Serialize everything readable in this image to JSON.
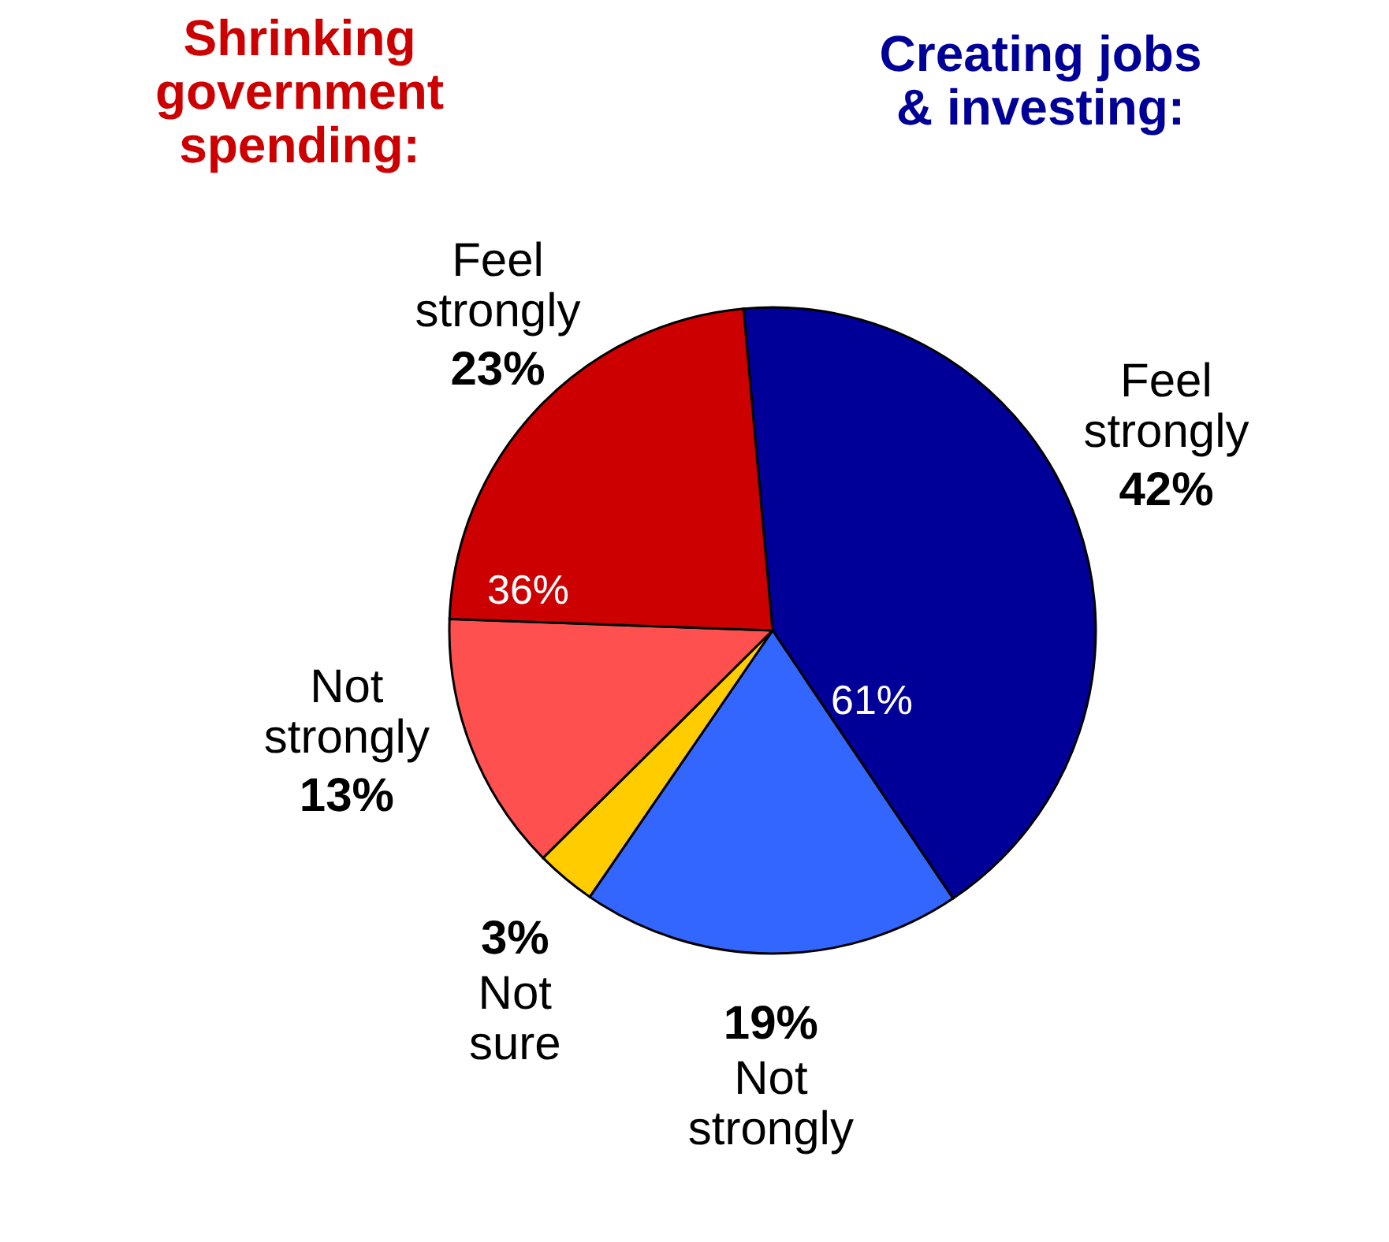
{
  "chart_data": {
    "type": "pie",
    "categories": [
      "Feel strongly",
      "Not strongly",
      "Not sure",
      "Not strongly",
      "Feel strongly"
    ],
    "values": [
      42,
      19,
      3,
      13,
      23
    ],
    "value_labels": [
      "42%",
      "19%",
      "3%",
      "13%",
      "23%"
    ],
    "colors": [
      "#000099",
      "#3366ff",
      "#ffcc00",
      "#ff5050",
      "#cc0000"
    ],
    "annotations": [
      "Shrinking government spending:",
      "Creating jobs & investing:",
      "36%",
      "61%"
    ]
  }
}
